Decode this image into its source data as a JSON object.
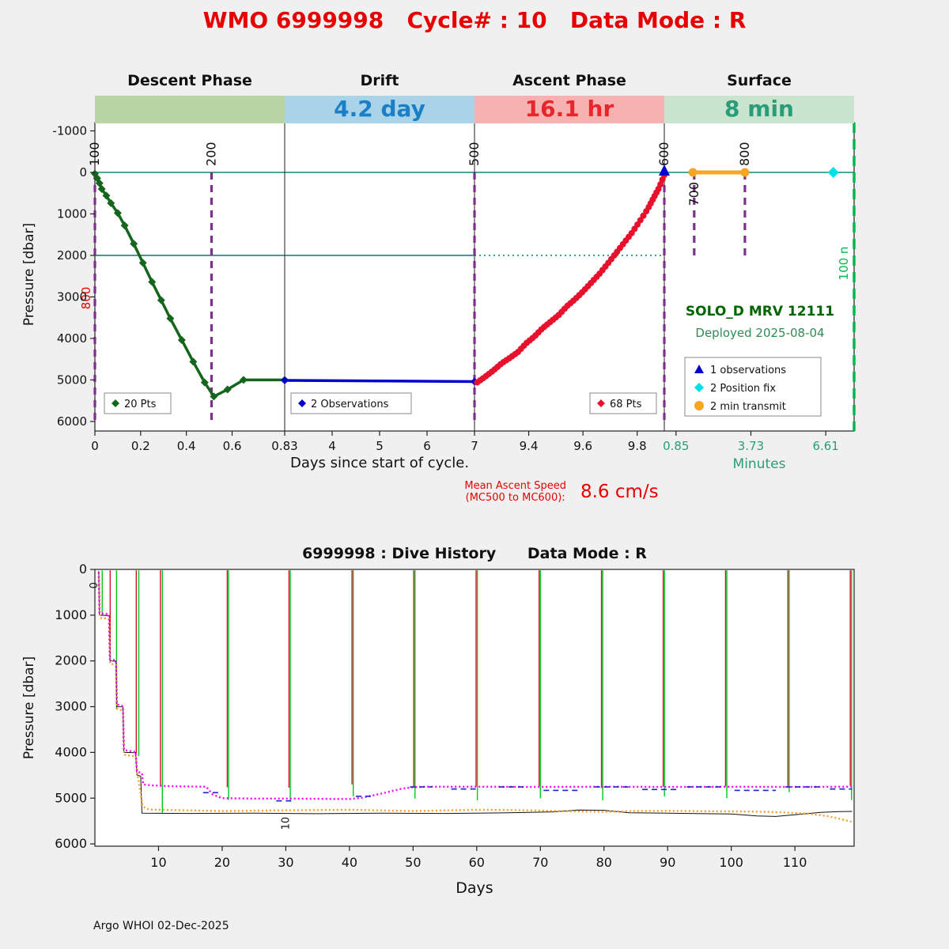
{
  "page": {
    "title": "WMO 6999998   Cycle# : 10   Data Mode : R",
    "footer": "Argo WHOI 02-Dec-2025"
  },
  "colors": {
    "title_red": "#e60000",
    "descent_band": "#b9d4a4",
    "drift_band": "#a9d3e9",
    "drift_text": "#1a7fc4",
    "ascent_band": "#f6b1b1",
    "ascent_text": "#e8242c",
    "surface_band": "#c9e5cf",
    "surface_text": "#2a9d78",
    "mc_purple": "#7e2f8e",
    "teal_line": "#0f8a7a",
    "minutes_green": "#2a9d78",
    "right_line_green": "#00b84d",
    "solo_green": "#006400",
    "deployed_green": "#2e8b57",
    "history_green": "#00c820",
    "history_red": "#d8102a",
    "park_magenta": "#ff00ff",
    "max_orange": "#f0a030",
    "obs_blue": "#2222cc",
    "axis_black": "#222222"
  },
  "chart_data": [
    {
      "type": "line",
      "title": "WMO 6999998 Cycle# : 10 Data Mode : R",
      "phase_headers": [
        "Descent Phase",
        "Drift",
        "Ascent Phase",
        "Surface"
      ],
      "band_durations": [
        "",
        "4.2 day",
        "16.1 hr",
        "8 min"
      ],
      "ylabel": "Pressure [dbar]",
      "xlabel": "Days since start of cycle.",
      "xlabel_minutes": "Minutes",
      "ylim": [
        6200,
        -1200
      ],
      "yticks": [
        -1000,
        0,
        1000,
        2000,
        3000,
        4000,
        5000,
        6000
      ],
      "x_segments": [
        {
          "unit": "days",
          "range": [
            0,
            0.83
          ],
          "ticks": [
            0,
            0.2,
            0.4,
            0.6,
            0.83
          ]
        },
        {
          "unit": "days",
          "range": [
            3,
            7
          ],
          "ticks": [
            4,
            5,
            6,
            7
          ]
        },
        {
          "unit": "days",
          "range": [
            9.2,
            9.9
          ],
          "ticks": [
            9.4,
            9.6,
            9.8
          ]
        },
        {
          "unit": "minutes",
          "range": [
            0.4,
            7.7
          ],
          "ticks": [
            0.85,
            3.73,
            6.61
          ]
        }
      ],
      "series": [
        {
          "name": "descent",
          "legend": "20 Pts",
          "seg": 0,
          "color": "#15651c",
          "marker": "diamond",
          "marker_size": 5,
          "line_width": 3.5,
          "points": [
            [
              0,
              30
            ],
            [
              0.01,
              140
            ],
            [
              0.02,
              260
            ],
            [
              0.03,
              400
            ],
            [
              0.05,
              560
            ],
            [
              0.07,
              740
            ],
            [
              0.1,
              980
            ],
            [
              0.13,
              1280
            ],
            [
              0.17,
              1720
            ],
            [
              0.21,
              2180
            ],
            [
              0.25,
              2640
            ],
            [
              0.29,
              3080
            ],
            [
              0.33,
              3520
            ],
            [
              0.38,
              4040
            ],
            [
              0.43,
              4560
            ],
            [
              0.48,
              5060
            ],
            [
              0.52,
              5400
            ],
            [
              0.58,
              5230
            ],
            [
              0.65,
              5000
            ],
            [
              0.83,
              5000
            ]
          ]
        },
        {
          "name": "drift",
          "legend": "2 Observations",
          "seg": 1,
          "color": "#0000cc",
          "marker": "diamond",
          "marker_size": 5,
          "line_width": 3.5,
          "points": [
            [
              0.83,
              5010
            ],
            [
              7,
              5040
            ]
          ]
        },
        {
          "name": "ascent",
          "legend": "68 Pts",
          "seg": 2,
          "color": "#e8112d",
          "marker": "circle",
          "marker_size": 4,
          "line_width": 2.5,
          "marker_count": 68,
          "points": [
            [
              9.21,
              5060
            ],
            [
              9.24,
              4920
            ],
            [
              9.27,
              4770
            ],
            [
              9.3,
              4600
            ],
            [
              9.33,
              4470
            ],
            [
              9.36,
              4330
            ],
            [
              9.39,
              4120
            ],
            [
              9.42,
              3960
            ],
            [
              9.45,
              3760
            ],
            [
              9.48,
              3600
            ],
            [
              9.51,
              3440
            ],
            [
              9.54,
              3230
            ],
            [
              9.57,
              3060
            ],
            [
              9.6,
              2870
            ],
            [
              9.63,
              2660
            ],
            [
              9.66,
              2450
            ],
            [
              9.69,
              2210
            ],
            [
              9.72,
              1960
            ],
            [
              9.75,
              1710
            ],
            [
              9.78,
              1460
            ],
            [
              9.81,
              1170
            ],
            [
              9.84,
              870
            ],
            [
              9.86,
              620
            ],
            [
              9.88,
              380
            ],
            [
              9.9,
              60
            ]
          ]
        },
        {
          "name": "transmit",
          "legend": "2 min transmit",
          "seg": 3,
          "color": "#f5a623",
          "marker": "circle",
          "marker_size": 5.5,
          "line_width": 5,
          "points": [
            [
              1.5,
              0
            ],
            [
              3.5,
              0
            ]
          ]
        }
      ],
      "end_marker": {
        "name": "1 observations",
        "seg": 2,
        "x": 9.9,
        "p": 0,
        "color": "#0000cc"
      },
      "position_fix": {
        "name": "2 Position fix",
        "seg": 3,
        "x": 6.9,
        "p": 0,
        "color": "#00dfe8"
      },
      "mc_lines": [
        {
          "label": "100",
          "seg": 0,
          "x": 0,
          "p1": 0,
          "p2": 6000,
          "side": "above"
        },
        {
          "label": "200",
          "seg": 0,
          "x": 0.51,
          "p1": 0,
          "p2": 6000,
          "side": "above"
        },
        {
          "label": "500",
          "seg": 2,
          "x": 9.2,
          "p1": 0,
          "p2": 6000,
          "side": "above"
        },
        {
          "label": "600",
          "seg": 2,
          "x": 9.9,
          "p1": 0,
          "p2": 6000,
          "side": "above"
        },
        {
          "label": "700",
          "seg": 3,
          "x": 1.55,
          "p1": 0,
          "p2": 2000,
          "side": "below"
        },
        {
          "label": "800",
          "seg": 3,
          "x": 3.5,
          "p1": 0,
          "p2": 2000,
          "side": "above"
        }
      ],
      "hlines": [
        {
          "p": 0,
          "seg1": 0,
          "x1": 0,
          "seg2": 3,
          "x2": 7.7,
          "dash": ""
        },
        {
          "p": 2000,
          "seg1": 0,
          "x1": 0,
          "seg2": 2,
          "x2": 9.2,
          "dash": ""
        },
        {
          "p": 2000,
          "seg1": 2,
          "x1": 9.2,
          "seg2": 2,
          "x2": 9.9,
          "dash": "2 4"
        }
      ],
      "right_boundary_label": "100 n",
      "left_red_label": "800",
      "solo_label": "SOLO_D MRV 12111",
      "deployed_label": "Deployed 2025-08-04",
      "speed_label_1": "Mean Ascent Speed",
      "speed_label_2": "(MC500 to MC600):",
      "speed_value": "8.6 cm/s",
      "legend_box": [
        {
          "marker": "triangle",
          "color": "#0000cc",
          "label": "1 observations"
        },
        {
          "marker": "diamond",
          "color": "#00dfe8",
          "label": "2 Position fix"
        },
        {
          "marker": "circle",
          "color": "#f5a623",
          "label": "2 min transmit"
        }
      ]
    },
    {
      "type": "line",
      "title": "6999998 : Dive History      Data Mode : R",
      "xlabel": "Days",
      "ylabel": "Pressure [dbar]",
      "xlim": [
        0,
        119.3
      ],
      "ylim": [
        6050,
        0
      ],
      "xticks": [
        10,
        20,
        30,
        40,
        50,
        60,
        70,
        80,
        90,
        100,
        110
      ],
      "yticks": [
        0,
        1000,
        2000,
        3000,
        4000,
        5000,
        6000
      ],
      "green_descent_spikes": [
        [
          1.15,
          1000
        ],
        [
          3.4,
          3060
        ],
        [
          6.9,
          4080
        ],
        [
          10.6,
          5320
        ],
        [
          21,
          5040
        ],
        [
          30.7,
          5060
        ],
        [
          40.6,
          4960
        ],
        [
          50.3,
          5010
        ],
        [
          60.1,
          5050
        ],
        [
          70,
          5000
        ],
        [
          79.8,
          5050
        ],
        [
          89.5,
          4960
        ],
        [
          99.3,
          5000
        ],
        [
          109.1,
          4870
        ],
        [
          118.9,
          5040
        ]
      ],
      "red_ascent_spikes": [
        [
          2.4,
          1980
        ],
        [
          6.5,
          4020
        ],
        [
          10.3,
          4730
        ],
        [
          20.8,
          4760
        ],
        [
          30.5,
          4770
        ],
        [
          40.4,
          4700
        ],
        [
          50.1,
          4760
        ],
        [
          59.9,
          4750
        ],
        [
          69.8,
          4740
        ],
        [
          79.6,
          4780
        ],
        [
          89.3,
          4750
        ],
        [
          99.1,
          4740
        ],
        [
          108.9,
          4750
        ],
        [
          118.7,
          4730
        ]
      ],
      "black_bottom_line": [
        [
          0.6,
          40
        ],
        [
          0.7,
          1000
        ],
        [
          2.3,
          1010
        ],
        [
          2.4,
          2000
        ],
        [
          3.3,
          2005
        ],
        [
          3.45,
          3000
        ],
        [
          4.4,
          3005
        ],
        [
          4.55,
          4000
        ],
        [
          6.4,
          4005
        ],
        [
          6.6,
          4490
        ],
        [
          7.2,
          4520
        ],
        [
          7.4,
          5330
        ],
        [
          15,
          5335
        ],
        [
          25,
          5330
        ],
        [
          35,
          5340
        ],
        [
          45,
          5330
        ],
        [
          55,
          5335
        ],
        [
          65,
          5320
        ],
        [
          72,
          5300
        ],
        [
          76,
          5260
        ],
        [
          80,
          5265
        ],
        [
          84,
          5320
        ],
        [
          90,
          5330
        ],
        [
          96,
          5340
        ],
        [
          100,
          5345
        ],
        [
          104,
          5390
        ],
        [
          107,
          5400
        ],
        [
          111,
          5350
        ],
        [
          114,
          5310
        ],
        [
          117,
          5295
        ],
        [
          119,
          5290
        ]
      ],
      "magenta_park_line": [
        [
          0.6,
          60
        ],
        [
          0.72,
          960
        ],
        [
          2.2,
          980
        ],
        [
          2.35,
          1960
        ],
        [
          3.3,
          1990
        ],
        [
          3.45,
          2950
        ],
        [
          4.4,
          2990
        ],
        [
          4.55,
          3950
        ],
        [
          6.4,
          3990
        ],
        [
          6.6,
          4420
        ],
        [
          7.4,
          4450
        ],
        [
          7.6,
          4700
        ],
        [
          9,
          4720
        ],
        [
          12,
          4740
        ],
        [
          17.5,
          4750
        ],
        [
          18.5,
          4920
        ],
        [
          20,
          5000
        ],
        [
          25,
          5010
        ],
        [
          30,
          5010
        ],
        [
          35,
          5015
        ],
        [
          40,
          5020
        ],
        [
          42,
          4990
        ],
        [
          45,
          4900
        ],
        [
          48,
          4800
        ],
        [
          50,
          4760
        ],
        [
          52,
          4750
        ],
        [
          60,
          4750
        ],
        [
          70,
          4755
        ],
        [
          80,
          4750
        ],
        [
          90,
          4755
        ],
        [
          100,
          4750
        ],
        [
          110,
          4755
        ],
        [
          119,
          4750
        ]
      ],
      "orange_max_line": [
        [
          0.65,
          120
        ],
        [
          0.8,
          1060
        ],
        [
          2.25,
          1080
        ],
        [
          2.4,
          2060
        ],
        [
          3.35,
          2090
        ],
        [
          3.5,
          3050
        ],
        [
          4.45,
          3090
        ],
        [
          4.6,
          4050
        ],
        [
          6.45,
          4090
        ],
        [
          6.7,
          4480
        ],
        [
          7.5,
          5180
        ],
        [
          8.5,
          5250
        ],
        [
          12,
          5260
        ],
        [
          20,
          5280
        ],
        [
          30,
          5265
        ],
        [
          40,
          5255
        ],
        [
          50,
          5280
        ],
        [
          60,
          5255
        ],
        [
          65,
          5260
        ],
        [
          70,
          5270
        ],
        [
          75,
          5290
        ],
        [
          80,
          5300
        ],
        [
          85,
          5280
        ],
        [
          90,
          5275
        ],
        [
          95,
          5285
        ],
        [
          100,
          5290
        ],
        [
          104,
          5295
        ],
        [
          108,
          5310
        ],
        [
          112,
          5340
        ],
        [
          115,
          5390
        ],
        [
          117,
          5450
        ],
        [
          119,
          5520
        ]
      ],
      "blue_drift_segments": [
        [
          17,
          19.5,
          4880
        ],
        [
          28.5,
          31,
          5060
        ],
        [
          41,
          44,
          4960
        ],
        [
          49.5,
          53,
          4755
        ],
        [
          56,
          60,
          4800
        ],
        [
          63.5,
          68,
          4755
        ],
        [
          70.5,
          76,
          4830
        ],
        [
          78.5,
          84,
          4755
        ],
        [
          86,
          91.5,
          4810
        ],
        [
          93,
          99,
          4755
        ],
        [
          100.5,
          107,
          4830
        ],
        [
          108.5,
          114,
          4755
        ],
        [
          115.5,
          119,
          4800
        ]
      ],
      "annotations": [
        {
          "text": "0",
          "day": 0.35,
          "p": 350
        },
        {
          "text": "10",
          "day": 30.5,
          "p": 5550
        }
      ]
    }
  ]
}
